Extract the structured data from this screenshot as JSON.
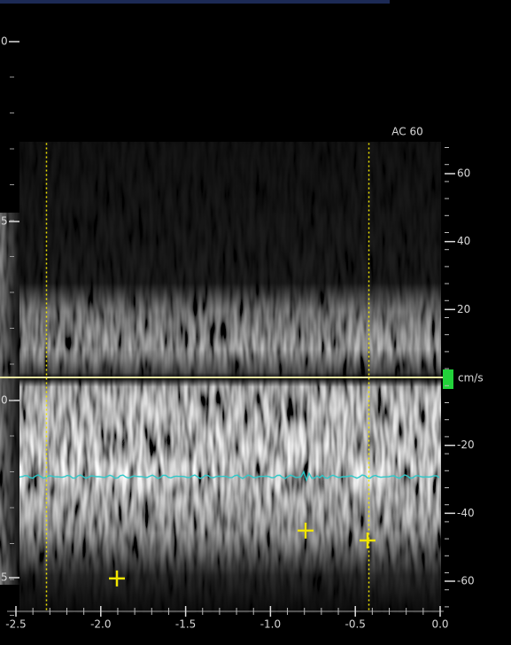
{
  "chart_data": {
    "type": "doppler",
    "annotation": "AC 60",
    "y_unit": "cm/s",
    "xlim": [
      -2.5,
      0
    ],
    "ylim": [
      -69,
      69
    ],
    "xticks": [
      -2.5,
      {
        "value": -2,
        "label": "-2.0"
      },
      -1.5,
      {
        "value": -1,
        "label": "-1.0"
      },
      -0.5,
      {
        "value": 0,
        "label": "0.0"
      }
    ],
    "yticks": [
      -60,
      -40,
      -20,
      20,
      40,
      60
    ],
    "baseline": 0,
    "cursor_lines": [
      -2.32,
      -0.42
    ],
    "markers": {
      "x": [
        -1.905,
        -0.793,
        -0.428
      ],
      "y": [
        -59.2,
        -45.1,
        -48
      ]
    },
    "marker_color": "#f2e600",
    "trace_color": "#2cc9c9",
    "baseline_color": "#e8e4a0"
  },
  "depth_scale": {
    "labels": [
      "0",
      "5",
      "0",
      "5"
    ]
  }
}
